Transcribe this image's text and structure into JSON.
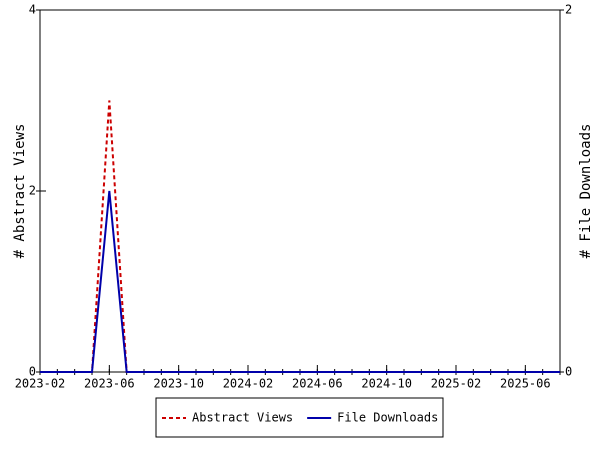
{
  "chart_data": {
    "type": "line",
    "y_label": "# Abstract Views",
    "y2_label": "# File Downloads",
    "categories": [
      "2023-02",
      null,
      null,
      null,
      "2023-06",
      null,
      null,
      null,
      "2023-10",
      null,
      null,
      null,
      "2024-02",
      null,
      null,
      null,
      "2024-06",
      null,
      null,
      null,
      "2024-10",
      null,
      null,
      null,
      "2025-02",
      null,
      null,
      null,
      "2025-06",
      null,
      null
    ],
    "series": [
      {
        "name": "Abstract Views",
        "color": "#cc0000",
        "dash": true,
        "values": [
          0,
          0,
          0,
          0,
          3,
          0,
          0,
          0,
          0,
          0,
          0,
          0,
          0,
          0,
          0,
          0,
          0,
          0,
          0,
          0,
          0,
          0,
          0,
          0,
          0,
          0,
          0,
          0,
          0,
          0,
          0
        ]
      },
      {
        "name": "File Downloads",
        "color": "#0000aa",
        "dash": false,
        "axis": "y2",
        "values": [
          0,
          0,
          0,
          0,
          1,
          0,
          0,
          0,
          0,
          0,
          0,
          0,
          0,
          0,
          0,
          0,
          0,
          0,
          0,
          0,
          0,
          0,
          0,
          0,
          0,
          0,
          0,
          0,
          0,
          0,
          0
        ]
      }
    ],
    "ylim": [
      0,
      4
    ],
    "yticks": [
      0,
      2,
      4
    ],
    "y2lim": [
      0,
      2
    ],
    "y2ticks": [
      0,
      2
    ],
    "grid": false,
    "legend": "bottom"
  }
}
